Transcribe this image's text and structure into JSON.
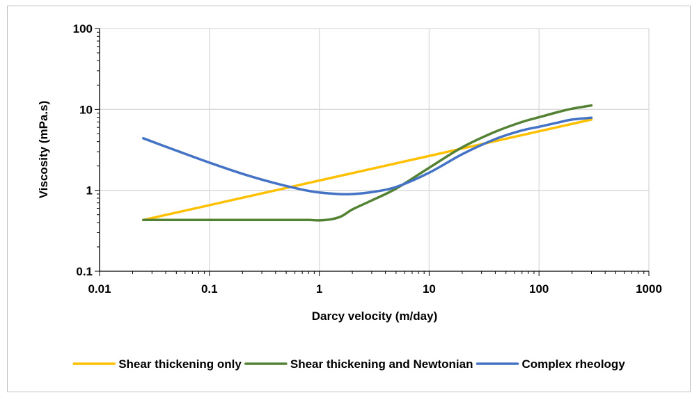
{
  "chart_data": {
    "type": "line",
    "title": "",
    "xlabel": "Darcy velocity (m/day)",
    "ylabel": "Viscosity (mPa.s)",
    "xscale": "log",
    "yscale": "log",
    "xlim": [
      0.01,
      1000
    ],
    "ylim": [
      0.1,
      100
    ],
    "x_ticks": [
      "0.01",
      "0.1",
      "1",
      "10",
      "100",
      "1000"
    ],
    "y_ticks": [
      "0.1",
      "1",
      "10",
      "100"
    ],
    "grid": true,
    "legend_position": "bottom",
    "series": [
      {
        "name": "Shear thickening only",
        "color": "#FFC000",
        "points": [
          [
            0.025,
            0.43
          ],
          [
            300,
            7.5
          ]
        ]
      },
      {
        "name": "Shear thickening and Newtonian",
        "color": "#548235",
        "points": [
          [
            0.025,
            0.43
          ],
          [
            0.1,
            0.43
          ],
          [
            0.5,
            0.43
          ],
          [
            0.8,
            0.43
          ],
          [
            1.0,
            0.425
          ],
          [
            1.3,
            0.44
          ],
          [
            1.6,
            0.48
          ],
          [
            2.0,
            0.58
          ],
          [
            3.0,
            0.75
          ],
          [
            5.0,
            1.05
          ],
          [
            10,
            1.9
          ],
          [
            20,
            3.4
          ],
          [
            40,
            5.3
          ],
          [
            70,
            7.0
          ],
          [
            100,
            8.0
          ],
          [
            150,
            9.3
          ],
          [
            200,
            10.2
          ],
          [
            300,
            11.2
          ]
        ]
      },
      {
        "name": "Complex rheology",
        "color": "#4472C4",
        "points": [
          [
            0.025,
            4.4
          ],
          [
            0.05,
            3.1
          ],
          [
            0.1,
            2.2
          ],
          [
            0.2,
            1.6
          ],
          [
            0.4,
            1.22
          ],
          [
            0.7,
            1.02
          ],
          [
            1.0,
            0.94
          ],
          [
            1.5,
            0.9
          ],
          [
            2.0,
            0.9
          ],
          [
            3.0,
            0.95
          ],
          [
            5.0,
            1.1
          ],
          [
            10,
            1.65
          ],
          [
            20,
            2.8
          ],
          [
            40,
            4.3
          ],
          [
            70,
            5.5
          ],
          [
            100,
            6.1
          ],
          [
            150,
            6.9
          ],
          [
            200,
            7.5
          ],
          [
            300,
            7.9
          ]
        ]
      }
    ]
  }
}
